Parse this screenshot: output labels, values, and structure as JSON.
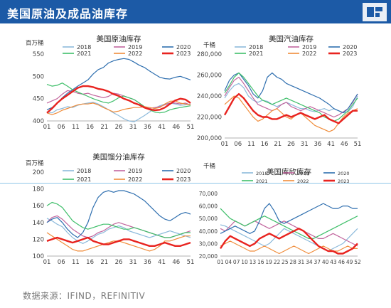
{
  "page": {
    "title": "美国原油及成品油库存",
    "source": "数据来源：IFIND，REFINITIV",
    "header_color": "#1c5aa6"
  },
  "series_colors": {
    "2018": "#8cbadb",
    "2019": "#c2669e",
    "2020": "#2f6faf",
    "2021": "#3fbf6a",
    "2022": "#f08c3a",
    "2023": "#e8231f"
  },
  "chart_data": [
    {
      "id": "crude",
      "type": "line",
      "title": "美国原油库存",
      "unit": "百万桶",
      "ylim": [
        400,
        550
      ],
      "yticks": [
        400,
        450,
        500,
        550
      ],
      "xticks": [
        "01",
        "06",
        "11",
        "16",
        "21",
        "26",
        "31",
        "36",
        "41",
        "46",
        "51"
      ],
      "series": [
        {
          "name": "2018",
          "values": [
            420,
            418,
            425,
            428,
            432,
            430,
            435,
            438,
            440,
            442,
            438,
            432,
            425,
            418,
            412,
            405,
            400,
            398,
            405,
            412,
            420,
            428,
            434,
            438,
            440,
            438,
            435,
            436,
            438
          ]
        },
        {
          "name": "2019",
          "values": [
            440,
            445,
            450,
            460,
            468,
            466,
            462,
            460,
            462,
            458,
            455,
            452,
            455,
            462,
            460,
            456,
            452,
            448,
            440,
            432,
            428,
            430,
            432,
            436,
            440,
            440,
            438,
            440,
            436
          ]
        },
        {
          "name": "2020",
          "values": [
            425,
            430,
            440,
            452,
            462,
            470,
            478,
            485,
            492,
            505,
            515,
            520,
            530,
            535,
            538,
            540,
            538,
            532,
            525,
            520,
            512,
            505,
            498,
            495,
            494,
            498,
            500,
            496,
            492
          ]
        },
        {
          "name": "2021",
          "values": [
            482,
            478,
            480,
            485,
            478,
            470,
            465,
            460,
            455,
            450,
            446,
            442,
            440,
            445,
            452,
            456,
            452,
            448,
            440,
            432,
            425,
            420,
            418,
            420,
            425,
            428,
            430,
            432,
            434
          ]
        },
        {
          "name": "2022",
          "values": [
            418,
            414,
            418,
            424,
            428,
            432,
            436,
            438,
            438,
            440,
            436,
            430,
            425,
            420,
            422,
            426,
            428,
            430,
            430,
            432,
            430,
            428,
            430,
            438,
            444,
            445,
            440,
            438,
            436
          ]
        },
        {
          "name": "2023",
          "values": [
            418,
            428,
            440,
            450,
            458,
            466,
            474,
            478,
            478,
            476,
            472,
            470,
            466,
            460,
            456,
            450,
            446,
            440,
            436,
            430,
            426,
            424,
            425,
            430,
            438,
            446,
            450,
            448,
            440
          ]
        }
      ]
    },
    {
      "id": "gasoline",
      "type": "line",
      "title": "美国汽油库存",
      "unit": "千桶",
      "ylim": [
        200000,
        280000
      ],
      "yticks": [
        200000,
        220000,
        240000,
        260000,
        280000
      ],
      "ytick_labels": [
        "200,000",
        "220,000",
        "240,000",
        "260,000",
        "280,000"
      ],
      "xticks": [
        "01",
        "06",
        "11",
        "16",
        "21",
        "26",
        "31",
        "36",
        "41",
        "46",
        "51"
      ],
      "series": [
        {
          "name": "2018",
          "values": [
            238,
            245,
            250,
            252,
            248,
            240,
            236,
            234,
            236,
            235,
            232,
            230,
            232,
            234,
            232,
            230,
            228,
            228,
            226,
            225,
            227,
            228,
            226,
            228,
            226,
            224,
            225,
            230,
            240
          ]
        },
        {
          "name": "2019",
          "values": [
            240,
            248,
            255,
            258,
            252,
            245,
            238,
            232,
            230,
            228,
            226,
            228,
            232,
            234,
            230,
            228,
            226,
            228,
            230,
            228,
            226,
            224,
            222,
            220,
            222,
            225,
            228,
            234,
            242
          ]
        },
        {
          "name": "2020",
          "values": [
            245,
            255,
            260,
            262,
            256,
            250,
            242,
            238,
            245,
            258,
            262,
            258,
            256,
            252,
            250,
            248,
            246,
            244,
            242,
            240,
            238,
            235,
            232,
            228,
            226,
            224,
            228,
            235,
            242
          ]
        },
        {
          "name": "2021",
          "values": [
            243,
            250,
            258,
            262,
            258,
            252,
            246,
            240,
            236,
            234,
            232,
            234,
            236,
            238,
            236,
            234,
            232,
            230,
            228,
            226,
            224,
            220,
            218,
            216,
            218,
            222,
            226,
            232,
            238
          ]
        },
        {
          "name": "2022",
          "values": [
            232,
            236,
            240,
            238,
            232,
            226,
            220,
            216,
            218,
            222,
            226,
            228,
            224,
            220,
            218,
            222,
            224,
            220,
            216,
            212,
            210,
            208,
            206,
            208,
            214,
            220,
            224,
            226,
            228
          ]
        },
        {
          "name": "2023",
          "values": [
            222,
            230,
            238,
            242,
            238,
            232,
            226,
            222,
            220,
            220,
            218,
            218,
            220,
            222,
            220,
            222,
            224,
            222,
            220,
            218,
            220,
            222,
            218,
            216,
            214,
            218,
            222,
            226,
            226
          ]
        }
      ]
    },
    {
      "id": "distillate",
      "type": "line",
      "title": "美国馏分油库存",
      "unit": "百万桶",
      "ylim": [
        100,
        200
      ],
      "yticks": [
        100,
        120,
        140,
        160,
        180,
        200
      ],
      "xticks": [
        "01",
        "06",
        "11",
        "16",
        "21",
        "26",
        "31",
        "36",
        "41",
        "46",
        "51"
      ],
      "series": [
        {
          "name": "2018",
          "values": [
            145,
            142,
            138,
            135,
            128,
            122,
            118,
            115,
            118,
            122,
            126,
            128,
            132,
            134,
            136,
            134,
            130,
            128,
            126,
            124,
            122,
            124,
            126,
            128,
            130,
            128,
            126,
            124,
            122
          ]
        },
        {
          "name": "2019",
          "values": [
            140,
            146,
            148,
            144,
            138,
            132,
            128,
            124,
            122,
            124,
            128,
            130,
            134,
            138,
            140,
            138,
            136,
            134,
            132,
            130,
            128,
            126,
            124,
            122,
            122,
            124,
            126,
            128,
            130
          ]
        },
        {
          "name": "2020",
          "values": [
            140,
            144,
            146,
            140,
            132,
            126,
            122,
            128,
            140,
            158,
            170,
            176,
            178,
            176,
            178,
            178,
            176,
            174,
            170,
            166,
            160,
            154,
            148,
            144,
            142,
            146,
            150,
            152,
            150
          ]
        },
        {
          "name": "2021",
          "values": [
            160,
            164,
            162,
            158,
            150,
            142,
            138,
            134,
            132,
            134,
            136,
            138,
            138,
            136,
            134,
            132,
            132,
            134,
            132,
            130,
            128,
            126,
            124,
            122,
            122,
            124,
            126,
            128,
            128
          ]
        },
        {
          "name": "2022",
          "values": [
            128,
            124,
            120,
            116,
            112,
            108,
            106,
            106,
            108,
            110,
            112,
            114,
            116,
            118,
            118,
            116,
            114,
            112,
            110,
            108,
            106,
            108,
            112,
            118,
            118,
            120,
            122,
            124,
            124
          ]
        },
        {
          "name": "2023",
          "values": [
            118,
            120,
            122,
            120,
            118,
            116,
            118,
            120,
            122,
            118,
            116,
            114,
            114,
            116,
            118,
            120,
            120,
            118,
            116,
            114,
            112,
            112,
            114,
            116,
            114,
            112,
            112,
            114,
            116
          ]
        }
      ]
    },
    {
      "id": "jet",
      "type": "line",
      "title": "美国库欣库存",
      "unit": "千桶",
      "ylim": [
        20000,
        70000
      ],
      "yticks": [
        20000,
        30000,
        40000,
        50000,
        60000,
        70000
      ],
      "ytick_labels": [
        "20,000",
        "30,000",
        "40,000",
        "50,000",
        "60,000",
        "70,000"
      ],
      "xticks": [
        "01",
        "04",
        "07",
        "10",
        "13",
        "16",
        "19",
        "22",
        "25",
        "28",
        "31",
        "34",
        "37",
        "40",
        "43",
        "46",
        "49",
        "52"
      ],
      "series": [
        {
          "name": "2018",
          "values": [
            45,
            44,
            42,
            40,
            38,
            36,
            34,
            32,
            30,
            28,
            30,
            34,
            38,
            42,
            40,
            38,
            36,
            34,
            32,
            30,
            28,
            26,
            24,
            26,
            28,
            30,
            34,
            38,
            42
          ]
        },
        {
          "name": "2019",
          "values": [
            42,
            40,
            44,
            48,
            46,
            44,
            46,
            48,
            46,
            44,
            42,
            44,
            46,
            48,
            46,
            44,
            42,
            40,
            38,
            36,
            34,
            34,
            36,
            38,
            36,
            34,
            32,
            30,
            28
          ]
        },
        {
          "name": "2020",
          "values": [
            38,
            40,
            42,
            44,
            42,
            40,
            38,
            40,
            48,
            58,
            62,
            56,
            48,
            46,
            48,
            50,
            52,
            54,
            56,
            58,
            60,
            62,
            60,
            58,
            58,
            60,
            60,
            58,
            58
          ]
        },
        {
          "name": "2021",
          "values": [
            58,
            54,
            50,
            48,
            46,
            44,
            46,
            48,
            50,
            52,
            50,
            48,
            46,
            44,
            42,
            40,
            38,
            36,
            34,
            34,
            36,
            38,
            40,
            42,
            44,
            46,
            48,
            50,
            52
          ]
        },
        {
          "name": "2022",
          "values": [
            28,
            30,
            32,
            30,
            28,
            26,
            24,
            24,
            26,
            28,
            26,
            24,
            22,
            24,
            26,
            28,
            26,
            24,
            22,
            24,
            26,
            28,
            26,
            24,
            24,
            26,
            28,
            26,
            26
          ]
        },
        {
          "name": "2023",
          "values": [
            26,
            32,
            36,
            34,
            32,
            30,
            28,
            30,
            34,
            36,
            38,
            36,
            34,
            36,
            38,
            40,
            42,
            40,
            36,
            32,
            28,
            26,
            24,
            24,
            22,
            22,
            24,
            26,
            30
          ]
        }
      ]
    }
  ]
}
